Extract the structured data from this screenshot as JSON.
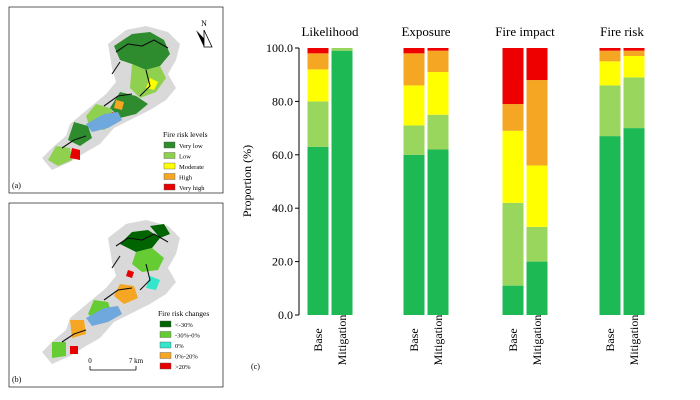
{
  "map_a": {
    "panel_label": "(a)",
    "north_label": "N",
    "legend_title": "Fire risk levels",
    "legend_items": [
      {
        "label": "Very low",
        "color": "#2e8b2e"
      },
      {
        "label": "Low",
        "color": "#8fd14f"
      },
      {
        "label": "Moderate",
        "color": "#ffff00"
      },
      {
        "label": "High",
        "color": "#f5a623"
      },
      {
        "label": "Very high",
        "color": "#e60000"
      }
    ]
  },
  "map_b": {
    "panel_label": "(b)",
    "legend_title": "Fire risk changes",
    "legend_items": [
      {
        "label": "<-30%",
        "color": "#006400"
      },
      {
        "label": "-30%-0%",
        "color": "#66cc33"
      },
      {
        "label": "0%",
        "color": "#33e6cc"
      },
      {
        "label": "0%-20%",
        "color": "#f5a623"
      },
      {
        "label": ">20%",
        "color": "#e60000"
      }
    ],
    "scale_zero": "0",
    "scale_end": "7 km"
  },
  "chart_panel_label": "(c)",
  "chart_data": {
    "type": "bar",
    "stacked": true,
    "ylabel": "Proportion (%)",
    "xlabel": "",
    "ylim": [
      0,
      100
    ],
    "yticks": [
      "0.0",
      "20.0",
      "40.0",
      "60.0",
      "80.0",
      "100.0"
    ],
    "grid": false,
    "groups": [
      {
        "title": "Likelihood",
        "bars": [
          {
            "label": "Base",
            "values": [
              63,
              17,
              12,
              6,
              2
            ]
          },
          {
            "label": "Mitigation",
            "values": [
              99,
              1,
              0,
              0,
              0
            ]
          }
        ]
      },
      {
        "title": "Exposure",
        "bars": [
          {
            "label": "Base",
            "values": [
              60,
              11,
              15,
              12,
              2
            ]
          },
          {
            "label": "Mitigation",
            "values": [
              62,
              13,
              16,
              8,
              1
            ]
          }
        ]
      },
      {
        "title": "Fire impact",
        "bars": [
          {
            "label": "Base",
            "values": [
              11,
              31,
              27,
              10,
              21
            ]
          },
          {
            "label": "Mitigation",
            "values": [
              20,
              13,
              23,
              32,
              12
            ]
          }
        ]
      },
      {
        "title": "Fire risk",
        "bars": [
          {
            "label": "Base",
            "values": [
              67,
              19,
              9,
              4,
              1
            ]
          },
          {
            "label": "Mitigation",
            "values": [
              70,
              19,
              8,
              2,
              1
            ]
          }
        ]
      }
    ],
    "segment_colors": [
      "#1db954",
      "#98d65e",
      "#ffff00",
      "#f5a623",
      "#ee0000"
    ]
  }
}
